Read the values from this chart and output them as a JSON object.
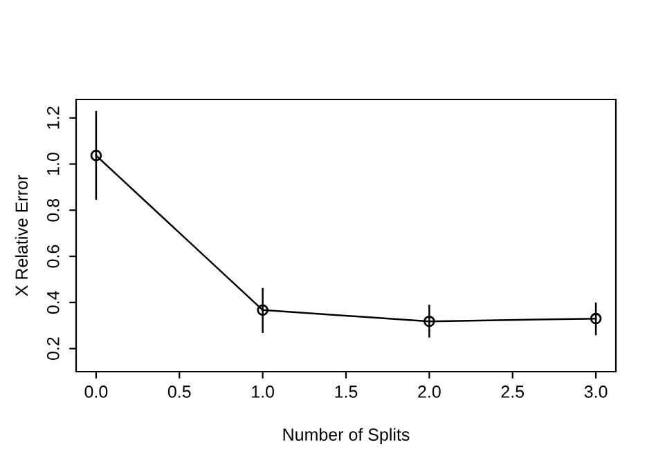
{
  "chart_data": {
    "type": "line",
    "xlabel": "Number of Splits",
    "ylabel": "X Relative Error",
    "x": [
      0,
      1,
      2,
      3
    ],
    "series": [
      {
        "color": "#000000",
        "values": [
          1.037,
          0.367,
          0.318,
          0.33
        ],
        "errors": [
          [
            0.845,
            1.23
          ],
          [
            0.268,
            0.463
          ],
          [
            0.248,
            0.39
          ],
          [
            0.258,
            0.4
          ]
        ]
      }
    ],
    "marker": "circle",
    "line_style": "solid",
    "xlim": [
      -0.12,
      3.12
    ],
    "xticks": [
      {
        "value": 0,
        "label": "0.0"
      },
      0.5,
      {
        "value": 1,
        "label": "1.0"
      },
      1.5,
      {
        "value": 2,
        "label": "2.0"
      },
      2.5,
      {
        "value": 3,
        "label": "3.0"
      }
    ],
    "ylim": [
      0.1,
      1.28
    ],
    "yticks": [
      0.2,
      0.4,
      0.6,
      0.8,
      {
        "value": 1,
        "label": "1.0"
      },
      1.2
    ],
    "grid": false,
    "legend": false
  }
}
